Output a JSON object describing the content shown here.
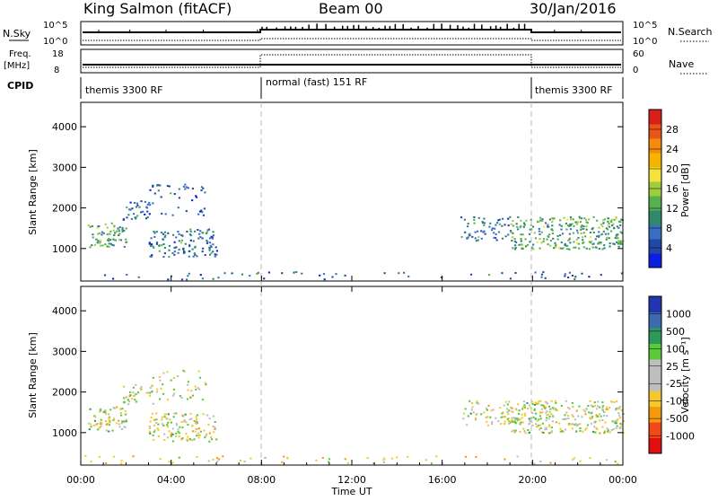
{
  "header": {
    "station": "King Salmon (fitACF)",
    "beam": "Beam 00",
    "date": "30/Jan/2016"
  },
  "strips": {
    "nsky_label": "N.Sky",
    "nsky_ticks": [
      "10^5",
      "10^0"
    ],
    "nsearch_label": "N.Search",
    "nsearch_ticks": [
      "10^5",
      "10^0"
    ],
    "freq_label": "Freq.",
    "freq_unit": "[MHz]",
    "freq_ticks": [
      "18",
      "8"
    ],
    "nave_label": "Nave",
    "nave_ticks": [
      "60",
      "0"
    ],
    "cpid_label": "CPID",
    "cpid_segments": [
      {
        "label": "themis 3300 RF",
        "start_hr": 0,
        "end_hr": 8
      },
      {
        "label": "normal (fast) 151 RF",
        "start_hr": 8,
        "end_hr": 20
      },
      {
        "label": "themis 3300 RF",
        "start_hr": 20,
        "end_hr": 24
      }
    ]
  },
  "axes": {
    "ylabel": "Slant Range [km]",
    "xlabel": "Time UT",
    "yticks": [
      "4000",
      "3000",
      "2000",
      "1000"
    ],
    "xticks": [
      "00:00",
      "04:00",
      "08:00",
      "12:00",
      "16:00",
      "20:00",
      "00:00"
    ]
  },
  "colors": {
    "power": [
      "#0b1fe0",
      "#2346a8",
      "#3a6fc0",
      "#2f8a6a",
      "#57b050",
      "#9fcc3a",
      "#f2e23a",
      "#f5b400",
      "#f58a10",
      "#e8541a",
      "#d8201a"
    ],
    "velocity": [
      "#e01010",
      "#f04818",
      "#f59a10",
      "#f5c830",
      "#bebebe",
      "#bebebe",
      "#5aca3a",
      "#2e9a5a",
      "#3e6ab0",
      "#2236b0"
    ]
  },
  "colorbars": {
    "power_label": "Power [dB]",
    "power_ticks": [
      "28",
      "24",
      "20",
      "16",
      "12",
      "8",
      "4"
    ],
    "velocity_label": "Velocity [m s⁻¹]",
    "velocity_ticks": [
      "1000",
      "500",
      "100",
      "25",
      "-25",
      "-100",
      "-500",
      "-1000"
    ]
  },
  "chart_data": [
    {
      "type": "heatmap",
      "name": "power",
      "title": "",
      "xlabel": "Time UT",
      "ylabel": "Slant Range [km]",
      "x_unit": "hours UT",
      "xlim": [
        0,
        24
      ],
      "ylim": [
        200,
        4600
      ],
      "clim": [
        0,
        32
      ],
      "scatter_regions": [
        {
          "t0": 0.3,
          "t1": 2.0,
          "r0": 1050,
          "r1": 1650,
          "power_mean": 12,
          "density": 0.85
        },
        {
          "t0": 1.8,
          "t1": 3.2,
          "r0": 1700,
          "r1": 2200,
          "power_mean": 8,
          "density": 0.6
        },
        {
          "t0": 3.0,
          "t1": 6.0,
          "r0": 800,
          "r1": 1500,
          "power_mean": 8,
          "density": 0.7
        },
        {
          "t0": 3.0,
          "t1": 5.5,
          "r0": 1800,
          "r1": 2600,
          "power_mean": 5,
          "density": 0.25
        },
        {
          "t0": 16.8,
          "t1": 19.0,
          "r0": 1200,
          "r1": 1800,
          "power_mean": 8,
          "density": 0.55
        },
        {
          "t0": 19.0,
          "t1": 24.0,
          "r0": 1000,
          "r1": 1800,
          "power_mean": 12,
          "density": 0.85
        },
        {
          "t0": 0.0,
          "t1": 24.0,
          "r0": 250,
          "r1": 450,
          "power_mean": 6,
          "density": 0.15
        }
      ]
    },
    {
      "type": "heatmap",
      "name": "velocity",
      "title": "",
      "xlabel": "Time UT",
      "ylabel": "Slant Range [km]",
      "x_unit": "hours UT",
      "xlim": [
        0,
        24
      ],
      "ylim": [
        200,
        4600
      ],
      "clim": [
        -1000,
        1000
      ],
      "scatter_regions": [
        {
          "t0": 0.3,
          "t1": 2.0,
          "r0": 1050,
          "r1": 1650,
          "velocity_mean": 0,
          "density": 0.85
        },
        {
          "t0": 1.8,
          "t1": 3.2,
          "r0": 1700,
          "r1": 2200,
          "velocity_mean": 0,
          "density": 0.6
        },
        {
          "t0": 3.0,
          "t1": 6.0,
          "r0": 800,
          "r1": 1500,
          "velocity_mean": 0,
          "density": 0.7
        },
        {
          "t0": 3.0,
          "t1": 5.5,
          "r0": 1800,
          "r1": 2600,
          "velocity_mean": 0,
          "density": 0.25
        },
        {
          "t0": 16.8,
          "t1": 19.0,
          "r0": 1200,
          "r1": 1800,
          "velocity_mean": 0,
          "density": 0.55
        },
        {
          "t0": 19.0,
          "t1": 24.0,
          "r0": 1000,
          "r1": 1800,
          "velocity_mean": 0,
          "density": 0.85
        },
        {
          "t0": 0.0,
          "t1": 24.0,
          "r0": 250,
          "r1": 450,
          "velocity_mean": -60,
          "density": 0.15
        }
      ]
    }
  ]
}
